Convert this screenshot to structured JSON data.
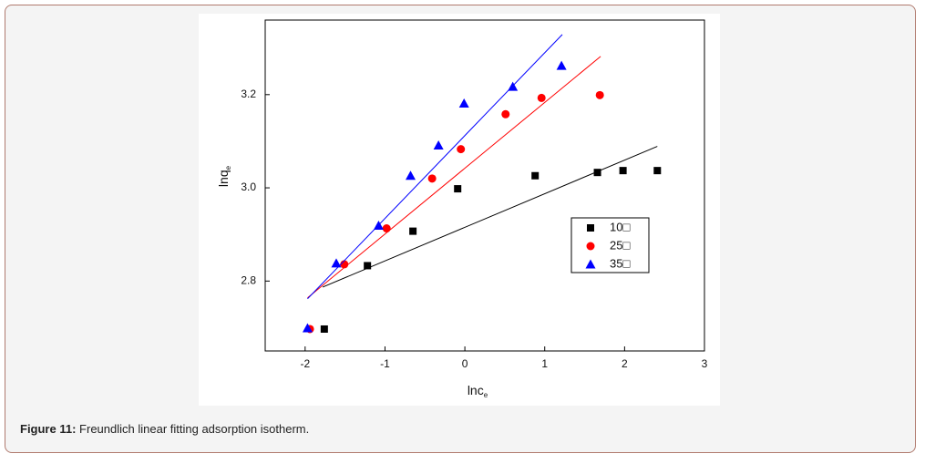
{
  "chart_data": {
    "type": "scatter",
    "x_label": {
      "text": "lnc",
      "subscript": "e"
    },
    "y_label": {
      "text": "lnq",
      "subscript": "e"
    },
    "xlim": [
      -2.5,
      3
    ],
    "ylim": [
      2.65,
      3.36
    ],
    "xticks": [
      -2,
      -1,
      0,
      1,
      2,
      3
    ],
    "yticks": [
      2.8,
      {
        "value": 3,
        "label": "3.0"
      },
      3.2
    ],
    "legend": "right",
    "series": [
      {
        "name": "10□",
        "color": "#000000",
        "marker": "square",
        "x": [
          -1.76,
          -1.22,
          -0.65,
          -0.09,
          0.88,
          1.66,
          1.98,
          2.41
        ],
        "values": [
          2.697,
          2.833,
          2.907,
          2.998,
          3.026,
          3.033,
          3.037,
          3.037
        ],
        "fit_x": [
          -1.78,
          2.41
        ],
        "fit_y": [
          2.787,
          3.089
        ]
      },
      {
        "name": "25□",
        "color": "#ff0000",
        "marker": "circle",
        "x": [
          -1.94,
          -1.51,
          -0.98,
          -0.41,
          -0.05,
          0.51,
          0.96,
          1.69
        ],
        "values": [
          2.697,
          2.836,
          2.913,
          3.02,
          3.083,
          3.158,
          3.193,
          3.199
        ],
        "fit_x": [
          -1.97,
          1.7
        ],
        "fit_y": [
          2.764,
          3.282
        ]
      },
      {
        "name": "35□",
        "color": "#0000ff",
        "marker": "triangle",
        "x": [
          -1.97,
          -1.61,
          -1.08,
          -0.68,
          -0.33,
          -0.01,
          0.6,
          1.21
        ],
        "values": [
          2.699,
          2.838,
          2.919,
          3.026,
          3.091,
          3.181,
          3.217,
          3.262
        ],
        "fit_x": [
          -1.97,
          1.22
        ],
        "fit_y": [
          2.762,
          3.329
        ]
      }
    ]
  },
  "caption": {
    "label": "Figure 11:",
    "text": "Freundlich linear fitting adsorption isotherm."
  }
}
